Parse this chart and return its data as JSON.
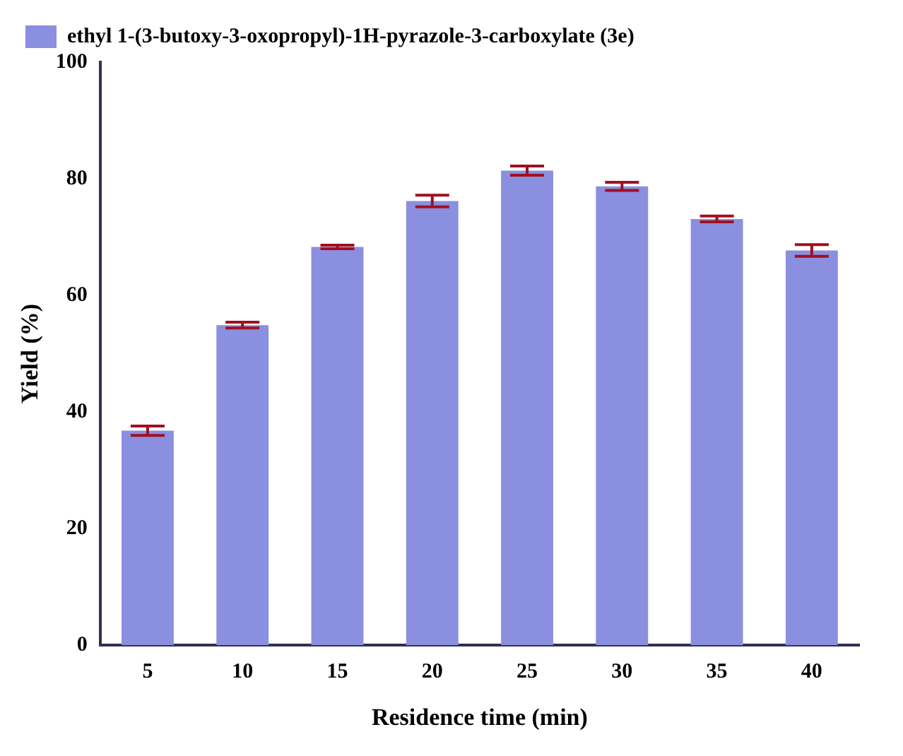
{
  "chart_data": {
    "type": "bar",
    "xlabel": "Residence time (min)",
    "ylabel": "Yield (%)",
    "categories": [
      "5",
      "10",
      "15",
      "20",
      "25",
      "30",
      "35",
      "40"
    ],
    "series": [
      {
        "name": "ethyl 1-(3-butoxy-3-oxopropyl)-1H-pyrazole-3-carboxylate (3e)",
        "color": "#8b8fe0",
        "values": [
          36.8,
          54.9,
          68.3,
          76.2,
          81.4,
          78.7,
          73.1,
          67.7
        ],
        "errors": [
          0.8,
          0.5,
          0.3,
          1,
          0.8,
          0.7,
          0.5,
          1
        ]
      }
    ],
    "ylim": [
      0,
      100
    ],
    "yticks": [
      0,
      20,
      40,
      60,
      80,
      100
    ],
    "grid": false,
    "legend": "top left"
  }
}
